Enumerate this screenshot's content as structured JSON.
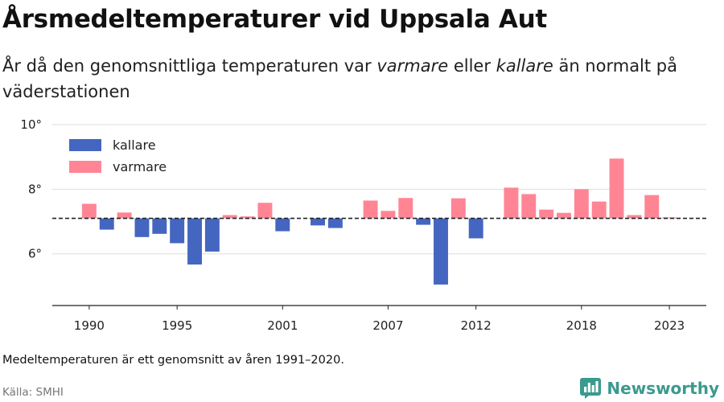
{
  "title": "Årsmedeltemperaturer vid Uppsala Aut",
  "subtitle": {
    "part1": "År då den genomsnittliga temperaturen var ",
    "warm_word": "varmare",
    "part2": " eller ",
    "cold_word": "kallare",
    "part3": " än normalt på väderstationen"
  },
  "note": "Medeltemperaturen är ett genomsnitt av åren 1991–2020.",
  "source": "Källa: SMHI",
  "brand": {
    "name": "Newsworthy",
    "icon": "bar-chart-logo-icon"
  },
  "colors": {
    "kallare": "#4466c0",
    "varmare": "#ff8595",
    "baseline": "#222222",
    "grid": "#dddddd"
  },
  "chart_data": {
    "type": "bar",
    "baseline": 7.1,
    "ylim": [
      4.4,
      10.3
    ],
    "yticks": [
      6,
      8,
      10
    ],
    "ytick_labels": [
      "6°",
      "8°",
      "10°"
    ],
    "xlim": [
      1987.9,
      2025.1
    ],
    "xticks": [
      1990,
      1995,
      2001,
      2007,
      2012,
      2018,
      2023
    ],
    "legend": {
      "position": "top-left",
      "items": [
        {
          "key": "kallare",
          "label": "kallare"
        },
        {
          "key": "varmare",
          "label": "varmare"
        }
      ]
    },
    "years": [
      1990,
      1991,
      1992,
      1993,
      1994,
      1995,
      1996,
      1997,
      1998,
      1999,
      2000,
      2001,
      2002,
      2003,
      2004,
      2005,
      2006,
      2007,
      2008,
      2009,
      2010,
      2011,
      2012,
      2013,
      2014,
      2015,
      2016,
      2017,
      2018,
      2019,
      2020,
      2021,
      2022,
      2023
    ],
    "values": [
      7.55,
      6.75,
      7.28,
      6.52,
      6.62,
      6.33,
      5.67,
      6.07,
      7.2,
      7.16,
      7.58,
      6.7,
      null,
      6.88,
      6.8,
      null,
      7.65,
      7.33,
      7.73,
      6.9,
      5.05,
      7.72,
      6.48,
      null,
      8.05,
      7.85,
      7.37,
      7.27,
      8.0,
      7.62,
      8.95,
      7.2,
      7.82,
      7.13
    ]
  }
}
